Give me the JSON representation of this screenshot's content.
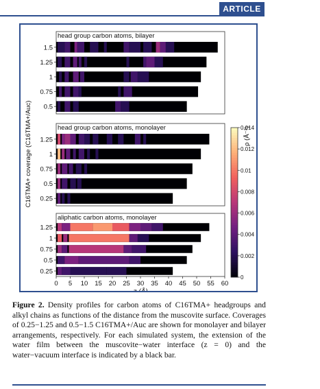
{
  "header": {
    "section_tag": "ARTICLE"
  },
  "caption": {
    "label": "Figure 2.",
    "text": "Density profiles for carbon atoms of C16TMA+ headgroups and alkyl chains as functions of the distance from the muscovite surface. Coverages of 0.25−1.25 and 0.5−1.5 C16TMA+/Auc are shown for monolayer and bilayer arrangements, respectively. For each simulated system, the extension of the water film between the muscovite−water interface (z = 0) and the water−vacuum interface is indicated by a black bar."
  },
  "chart_data": {
    "type": "heatmap",
    "xlabel": "z (Å)",
    "x_ticks": [
      0,
      5,
      10,
      15,
      20,
      25,
      30,
      35,
      40,
      45,
      50,
      55,
      60
    ],
    "xlim": [
      0,
      60
    ],
    "ylabel": "C16TMA+ coverage (C16TMA+/Auc)",
    "colorbar": {
      "label": "ρ (Å⁻³)",
      "range": [
        0,
        0.014
      ],
      "ticks": [
        "0",
        "0.002",
        "0.004",
        "0.006",
        "0.008",
        "0.01",
        "0.012",
        "0.014"
      ],
      "colors": [
        "#000004",
        "#2c115f",
        "#721f81",
        "#b73779",
        "#f1605d",
        "#feb078",
        "#fcfdbf"
      ]
    },
    "panels": [
      {
        "title": "head group carbon atoms, bilayer",
        "rows": [
          {
            "coverage": "1.5",
            "water_film_end": 57.5,
            "bands": [
              [
                0.5,
                3,
                0.002
              ],
              [
                3,
                5,
                0.003
              ],
              [
                6.5,
                7.5,
                0.005
              ],
              [
                7.5,
                10,
                0.003
              ],
              [
                12,
                15,
                0.002
              ],
              [
                17,
                18,
                0.002
              ],
              [
                24,
                26,
                0.003
              ],
              [
                26,
                30,
                0.002
              ],
              [
                31,
                34,
                0.002
              ],
              [
                35.5,
                37,
                0.006
              ],
              [
                37,
                39,
                0.004
              ],
              [
                39,
                42,
                0.002
              ]
            ]
          },
          {
            "coverage": "1.25",
            "water_film_end": 53.5,
            "bands": [
              [
                0.5,
                2,
                0.002
              ],
              [
                3,
                5,
                0.003
              ],
              [
                6,
                7.5,
                0.004
              ],
              [
                8,
                9,
                0.003
              ],
              [
                10,
                11,
                0.002
              ],
              [
                25,
                26,
                0.002
              ],
              [
                31,
                32,
                0.003
              ],
              [
                32,
                35,
                0.004
              ],
              [
                35,
                38,
                0.002
              ]
            ]
          },
          {
            "coverage": "1",
            "water_film_end": 51.5,
            "bands": [
              [
                1,
                2,
                0.002
              ],
              [
                3,
                4.5,
                0.003
              ],
              [
                6,
                8,
                0.004
              ],
              [
                8.5,
                10,
                0.003
              ],
              [
                24,
                26,
                0.002
              ],
              [
                26.5,
                29,
                0.003
              ],
              [
                29,
                33,
                0.002
              ]
            ]
          },
          {
            "coverage": "0.75",
            "water_film_end": 50.5,
            "bands": [
              [
                1,
                2,
                0.003
              ],
              [
                3,
                5,
                0.003
              ],
              [
                6,
                8,
                0.003
              ],
              [
                8,
                9,
                0.002
              ],
              [
                22,
                23,
                0.002
              ],
              [
                24,
                27,
                0.003
              ]
            ]
          },
          {
            "coverage": "0.5",
            "water_film_end": 46.5,
            "bands": [
              [
                0.5,
                1.5,
                0.002
              ],
              [
                3,
                5,
                0.003
              ],
              [
                6,
                8,
                0.002
              ],
              [
                21,
                23,
                0.003
              ],
              [
                23,
                26,
                0.002
              ]
            ]
          }
        ]
      },
      {
        "title": "head group carbon atoms, monolayer",
        "rows": [
          {
            "coverage": "1.25",
            "water_film_end": 54.5,
            "bands": [
              [
                0.5,
                1.5,
                0.008
              ],
              [
                2,
                3,
                0.005
              ],
              [
                3,
                5,
                0.006
              ],
              [
                5,
                7,
                0.004
              ],
              [
                8,
                10,
                0.003
              ],
              [
                10,
                12,
                0.002
              ],
              [
                13,
                15,
                0.002
              ],
              [
                18,
                20,
                0.002
              ],
              [
                22,
                24,
                0.002
              ],
              [
                28,
                30,
                0.003
              ],
              [
                31,
                32,
                0.002
              ]
            ]
          },
          {
            "coverage": "1",
            "water_film_end": 51.5,
            "bands": [
              [
                0.5,
                1.5,
                0.012
              ],
              [
                2,
                3,
                0.006
              ],
              [
                3.5,
                5,
                0.004
              ],
              [
                6,
                7,
                0.003
              ],
              [
                8,
                10,
                0.003
              ],
              [
                11,
                12,
                0.002
              ],
              [
                14,
                15,
                0.002
              ]
            ]
          },
          {
            "coverage": "0.75",
            "water_film_end": 48.5,
            "bands": [
              [
                0.5,
                1.5,
                0.006
              ],
              [
                2,
                4,
                0.004
              ],
              [
                4.5,
                6,
                0.003
              ],
              [
                7,
                9,
                0.002
              ],
              [
                10,
                11,
                0.002
              ]
            ]
          },
          {
            "coverage": "0.5",
            "water_film_end": 46.5,
            "bands": [
              [
                0.5,
                1.5,
                0.006
              ],
              [
                2,
                4,
                0.003
              ],
              [
                5,
                7,
                0.002
              ],
              [
                7.5,
                9,
                0.002
              ]
            ]
          },
          {
            "coverage": "0.25",
            "water_film_end": 41.5,
            "bands": [
              [
                0.5,
                1.5,
                0.004
              ],
              [
                2,
                3,
                0.002
              ],
              [
                4,
                5,
                0.002
              ]
            ]
          }
        ]
      },
      {
        "title": "aliphatic carbon atoms, monolayer",
        "rows": [
          {
            "coverage": "1.25",
            "water_film_end": 54.5,
            "bands": [
              [
                0.5,
                2,
                0.007
              ],
              [
                2,
                5,
                0.005
              ],
              [
                5,
                13,
                0.01
              ],
              [
                13,
                20,
                0.011
              ],
              [
                20,
                26,
                0.009
              ],
              [
                26,
                30,
                0.005
              ],
              [
                30,
                34,
                0.004
              ],
              [
                34,
                38,
                0.003
              ]
            ]
          },
          {
            "coverage": "1",
            "water_film_end": 51.5,
            "bands": [
              [
                0.5,
                2,
                0.009
              ],
              [
                2.5,
                4,
                0.006
              ],
              [
                4.5,
                26,
                0.01
              ],
              [
                26,
                29,
                0.004
              ],
              [
                29,
                33,
                0.002
              ]
            ]
          },
          {
            "coverage": "0.75",
            "water_film_end": 48.5,
            "bands": [
              [
                0.5,
                2,
                0.006
              ],
              [
                2,
                4,
                0.004
              ],
              [
                4.5,
                24,
                0.007
              ],
              [
                24,
                27,
                0.004
              ],
              [
                27,
                32,
                0.003
              ]
            ]
          },
          {
            "coverage": "0.5",
            "water_film_end": 46.5,
            "bands": [
              [
                0.5,
                3,
                0.003
              ],
              [
                3,
                8,
                0.005
              ],
              [
                8,
                20,
                0.004
              ],
              [
                20,
                26,
                0.004
              ],
              [
                26,
                30,
                0.003
              ]
            ]
          },
          {
            "coverage": "0.25",
            "water_film_end": 41.5,
            "bands": [
              [
                0.5,
                2,
                0.004
              ],
              [
                2,
                5,
                0.003
              ],
              [
                5,
                10,
                0.002
              ],
              [
                10,
                18,
                0.002
              ],
              [
                18,
                25,
                0.002
              ]
            ]
          }
        ]
      }
    ]
  }
}
